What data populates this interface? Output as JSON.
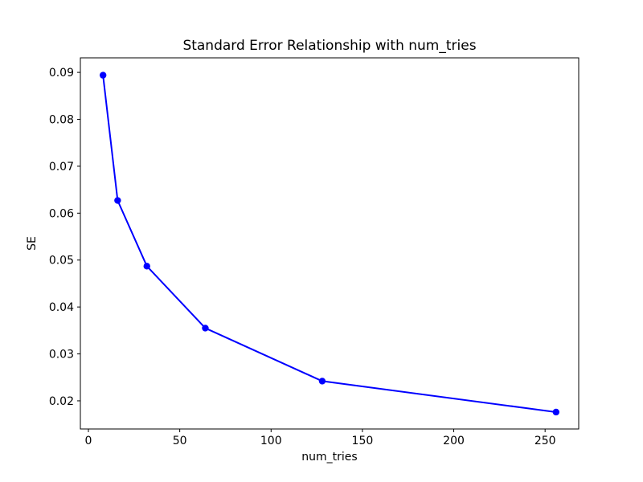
{
  "figure": {
    "background": "#ffffff"
  },
  "chart_data": {
    "type": "line",
    "title": "Standard Error Relationship with num_tries",
    "xlabel": "num_tries",
    "ylabel": "SE",
    "series": [
      {
        "name": "SE",
        "x": [
          8,
          16,
          32,
          64,
          128,
          256
        ],
        "y": [
          0.0894,
          0.0627,
          0.0487,
          0.0355,
          0.0242,
          0.0176
        ]
      }
    ],
    "xticks": {
      "values": [
        0,
        50,
        100,
        150,
        200,
        250
      ],
      "labels": [
        "0",
        "50",
        "100",
        "150",
        "200",
        "250"
      ]
    },
    "yticks": {
      "values": [
        0.02,
        0.03,
        0.04,
        0.05,
        0.06,
        0.07,
        0.08,
        0.09
      ],
      "labels": [
        "0.02",
        "0.03",
        "0.04",
        "0.05",
        "0.06",
        "0.07",
        "0.08",
        "0.09"
      ]
    },
    "xlim": [
      -4.4,
      268.4
    ],
    "ylim": [
      0.014,
      0.0931
    ],
    "line_color": "#0000ff",
    "marker": "circle",
    "marker_size": 4.2,
    "line_width": 2,
    "grid": false,
    "legend_position": "none",
    "axis_color": "#000000"
  }
}
